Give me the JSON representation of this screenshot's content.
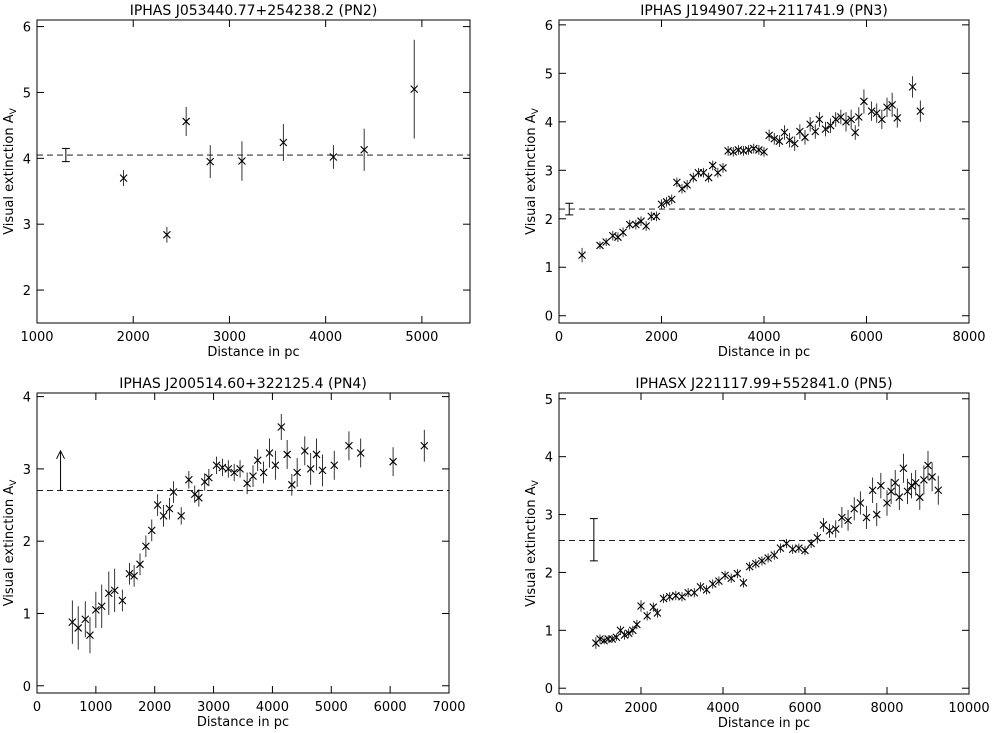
{
  "chart_data": [
    {
      "type": "scatter",
      "title": "IPHAS J053440.77+254238.2 (PN2)",
      "xlabel": "Distance in pc",
      "ylabel": "Visual extinction  A",
      "ylabel_sub": "V",
      "xlim": [
        1000,
        5500
      ],
      "ylim": [
        1.5,
        6.1
      ],
      "xticks": [
        1000,
        2000,
        3000,
        4000,
        5000
      ],
      "yticks": [
        2,
        3,
        4,
        5,
        6
      ],
      "grid": false,
      "reference_line": 4.05,
      "pn_marker": {
        "kind": "errorbar",
        "x": 1300,
        "y": 4.05,
        "low": 3.95,
        "high": 4.15
      },
      "points": [
        {
          "x": 1900,
          "y": 3.7,
          "err": 0.12
        },
        {
          "x": 2350,
          "y": 2.84,
          "err": 0.12
        },
        {
          "x": 2550,
          "y": 4.56,
          "err": 0.22
        },
        {
          "x": 2800,
          "y": 3.95,
          "err": 0.25
        },
        {
          "x": 3130,
          "y": 3.96,
          "err": 0.3
        },
        {
          "x": 3560,
          "y": 4.24,
          "err": 0.28
        },
        {
          "x": 4080,
          "y": 4.02,
          "err": 0.18
        },
        {
          "x": 4400,
          "y": 4.13,
          "err": 0.32
        },
        {
          "x": 4920,
          "y": 5.05,
          "err": 0.75
        }
      ]
    },
    {
      "type": "scatter",
      "title": "IPHAS J194907.22+211741.9 (PN3)",
      "xlabel": "Distance in pc",
      "ylabel": "Visual extinction  A",
      "ylabel_sub": "V",
      "xlim": [
        0,
        8000
      ],
      "ylim": [
        -0.15,
        6.1
      ],
      "xticks": [
        0,
        2000,
        4000,
        6000,
        8000
      ],
      "yticks": [
        0,
        1,
        2,
        3,
        4,
        5,
        6
      ],
      "grid": false,
      "reference_line": 2.2,
      "pn_marker": {
        "kind": "errorbar",
        "x": 200,
        "y": 2.2,
        "low": 2.08,
        "high": 2.32
      },
      "points": [
        {
          "x": 450,
          "y": 1.25,
          "err": 0.15
        },
        {
          "x": 800,
          "y": 1.45,
          "err": 0.08
        },
        {
          "x": 920,
          "y": 1.52,
          "err": 0.08
        },
        {
          "x": 1050,
          "y": 1.65,
          "err": 0.1
        },
        {
          "x": 1150,
          "y": 1.62,
          "err": 0.1
        },
        {
          "x": 1250,
          "y": 1.72,
          "err": 0.1
        },
        {
          "x": 1380,
          "y": 1.88,
          "err": 0.1
        },
        {
          "x": 1500,
          "y": 1.88,
          "err": 0.1
        },
        {
          "x": 1600,
          "y": 1.95,
          "err": 0.1
        },
        {
          "x": 1700,
          "y": 1.85,
          "err": 0.1
        },
        {
          "x": 1800,
          "y": 2.05,
          "err": 0.1
        },
        {
          "x": 1900,
          "y": 2.05,
          "err": 0.1
        },
        {
          "x": 2000,
          "y": 2.3,
          "err": 0.1
        },
        {
          "x": 2100,
          "y": 2.35,
          "err": 0.1
        },
        {
          "x": 2200,
          "y": 2.4,
          "err": 0.1
        },
        {
          "x": 2300,
          "y": 2.75,
          "err": 0.1
        },
        {
          "x": 2400,
          "y": 2.62,
          "err": 0.1
        },
        {
          "x": 2500,
          "y": 2.7,
          "err": 0.1
        },
        {
          "x": 2620,
          "y": 2.85,
          "err": 0.1
        },
        {
          "x": 2720,
          "y": 2.95,
          "err": 0.1
        },
        {
          "x": 2820,
          "y": 2.95,
          "err": 0.1
        },
        {
          "x": 2920,
          "y": 2.85,
          "err": 0.1
        },
        {
          "x": 3000,
          "y": 3.1,
          "err": 0.1
        },
        {
          "x": 3100,
          "y": 2.95,
          "err": 0.1
        },
        {
          "x": 3200,
          "y": 3.05,
          "err": 0.1
        },
        {
          "x": 3300,
          "y": 3.4,
          "err": 0.1
        },
        {
          "x": 3400,
          "y": 3.38,
          "err": 0.1
        },
        {
          "x": 3500,
          "y": 3.42,
          "err": 0.1
        },
        {
          "x": 3600,
          "y": 3.4,
          "err": 0.1
        },
        {
          "x": 3700,
          "y": 3.42,
          "err": 0.1
        },
        {
          "x": 3800,
          "y": 3.45,
          "err": 0.1
        },
        {
          "x": 3900,
          "y": 3.42,
          "err": 0.1
        },
        {
          "x": 4000,
          "y": 3.38,
          "err": 0.1
        },
        {
          "x": 4100,
          "y": 3.72,
          "err": 0.12
        },
        {
          "x": 4200,
          "y": 3.65,
          "err": 0.12
        },
        {
          "x": 4300,
          "y": 3.6,
          "err": 0.12
        },
        {
          "x": 4400,
          "y": 3.78,
          "err": 0.15
        },
        {
          "x": 4500,
          "y": 3.62,
          "err": 0.15
        },
        {
          "x": 4600,
          "y": 3.55,
          "err": 0.15
        },
        {
          "x": 4700,
          "y": 3.8,
          "err": 0.15
        },
        {
          "x": 4800,
          "y": 3.68,
          "err": 0.15
        },
        {
          "x": 4900,
          "y": 3.95,
          "err": 0.15
        },
        {
          "x": 5000,
          "y": 3.8,
          "err": 0.15
        },
        {
          "x": 5080,
          "y": 4.05,
          "err": 0.15
        },
        {
          "x": 5200,
          "y": 3.85,
          "err": 0.15
        },
        {
          "x": 5300,
          "y": 3.92,
          "err": 0.15
        },
        {
          "x": 5400,
          "y": 4.05,
          "err": 0.15
        },
        {
          "x": 5500,
          "y": 4.1,
          "err": 0.15
        },
        {
          "x": 5600,
          "y": 4.0,
          "err": 0.2
        },
        {
          "x": 5700,
          "y": 4.05,
          "err": 0.2
        },
        {
          "x": 5780,
          "y": 3.78,
          "err": 0.15
        },
        {
          "x": 5850,
          "y": 4.1,
          "err": 0.2
        },
        {
          "x": 5950,
          "y": 4.42,
          "err": 0.25
        },
        {
          "x": 6100,
          "y": 4.22,
          "err": 0.2
        },
        {
          "x": 6200,
          "y": 4.18,
          "err": 0.2
        },
        {
          "x": 6300,
          "y": 4.05,
          "err": 0.2
        },
        {
          "x": 6400,
          "y": 4.3,
          "err": 0.2
        },
        {
          "x": 6500,
          "y": 4.35,
          "err": 0.25
        },
        {
          "x": 6600,
          "y": 4.08,
          "err": 0.2
        },
        {
          "x": 6900,
          "y": 4.72,
          "err": 0.22
        },
        {
          "x": 7050,
          "y": 4.22,
          "err": 0.22
        }
      ]
    },
    {
      "type": "scatter",
      "title": "IPHAS J200514.60+322125.4 (PN4)",
      "xlabel": "Distance in pc",
      "ylabel": "Visual extinction  A",
      "ylabel_sub": "V",
      "xlim": [
        0,
        7000
      ],
      "ylim": [
        -0.1,
        4.05
      ],
      "xticks": [
        0,
        1000,
        2000,
        3000,
        4000,
        5000,
        6000,
        7000
      ],
      "yticks": [
        0,
        1,
        2,
        3,
        4
      ],
      "grid": false,
      "reference_line": 2.7,
      "pn_marker": {
        "kind": "lower_limit_arrow",
        "x": 400,
        "y": 2.7,
        "to": 3.25
      },
      "points": [
        {
          "x": 600,
          "y": 0.88,
          "err": 0.3
        },
        {
          "x": 700,
          "y": 0.8,
          "err": 0.3
        },
        {
          "x": 820,
          "y": 0.92,
          "err": 0.25
        },
        {
          "x": 900,
          "y": 0.7,
          "err": 0.25
        },
        {
          "x": 1000,
          "y": 1.05,
          "err": 0.25
        },
        {
          "x": 1100,
          "y": 1.1,
          "err": 0.3
        },
        {
          "x": 1220,
          "y": 1.28,
          "err": 0.3
        },
        {
          "x": 1320,
          "y": 1.32,
          "err": 0.3
        },
        {
          "x": 1450,
          "y": 1.18,
          "err": 0.15
        },
        {
          "x": 1570,
          "y": 1.55,
          "err": 0.15
        },
        {
          "x": 1650,
          "y": 1.52,
          "err": 0.15
        },
        {
          "x": 1750,
          "y": 1.68,
          "err": 0.15
        },
        {
          "x": 1850,
          "y": 1.93,
          "err": 0.15
        },
        {
          "x": 1950,
          "y": 2.15,
          "err": 0.15
        },
        {
          "x": 2050,
          "y": 2.5,
          "err": 0.15
        },
        {
          "x": 2150,
          "y": 2.35,
          "err": 0.15
        },
        {
          "x": 2250,
          "y": 2.45,
          "err": 0.15
        },
        {
          "x": 2320,
          "y": 2.68,
          "err": 0.15
        },
        {
          "x": 2450,
          "y": 2.35,
          "err": 0.12
        },
        {
          "x": 2580,
          "y": 2.85,
          "err": 0.12
        },
        {
          "x": 2680,
          "y": 2.65,
          "err": 0.12
        },
        {
          "x": 2750,
          "y": 2.6,
          "err": 0.12
        },
        {
          "x": 2850,
          "y": 2.82,
          "err": 0.12
        },
        {
          "x": 2920,
          "y": 2.88,
          "err": 0.12
        },
        {
          "x": 3050,
          "y": 3.05,
          "err": 0.12
        },
        {
          "x": 3150,
          "y": 3.02,
          "err": 0.12
        },
        {
          "x": 3250,
          "y": 3.0,
          "err": 0.12
        },
        {
          "x": 3350,
          "y": 2.95,
          "err": 0.12
        },
        {
          "x": 3450,
          "y": 3.0,
          "err": 0.12
        },
        {
          "x": 3570,
          "y": 2.8,
          "err": 0.15
        },
        {
          "x": 3670,
          "y": 2.9,
          "err": 0.15
        },
        {
          "x": 3750,
          "y": 3.12,
          "err": 0.15
        },
        {
          "x": 3850,
          "y": 2.95,
          "err": 0.15
        },
        {
          "x": 3950,
          "y": 3.22,
          "err": 0.2
        },
        {
          "x": 4050,
          "y": 3.05,
          "err": 0.2
        },
        {
          "x": 4150,
          "y": 3.58,
          "err": 0.18
        },
        {
          "x": 4250,
          "y": 3.2,
          "err": 0.2
        },
        {
          "x": 4330,
          "y": 2.78,
          "err": 0.15
        },
        {
          "x": 4420,
          "y": 2.95,
          "err": 0.2
        },
        {
          "x": 4550,
          "y": 3.25,
          "err": 0.2
        },
        {
          "x": 4650,
          "y": 3.0,
          "err": 0.22
        },
        {
          "x": 4750,
          "y": 3.2,
          "err": 0.22
        },
        {
          "x": 4850,
          "y": 2.98,
          "err": 0.22
        },
        {
          "x": 5050,
          "y": 3.05,
          "err": 0.2
        },
        {
          "x": 5300,
          "y": 3.32,
          "err": 0.2
        },
        {
          "x": 5500,
          "y": 3.22,
          "err": 0.2
        },
        {
          "x": 6050,
          "y": 3.1,
          "err": 0.2
        },
        {
          "x": 6580,
          "y": 3.32,
          "err": 0.22
        }
      ]
    },
    {
      "type": "scatter",
      "title": "IPHASX J221117.99+552841.0 (PN5)",
      "xlabel": "Distance in pc",
      "ylabel": "Visual extinction  A",
      "ylabel_sub": "V",
      "xlim": [
        0,
        10000
      ],
      "ylim": [
        -0.1,
        5.1
      ],
      "xticks": [
        0,
        2000,
        4000,
        6000,
        8000,
        10000
      ],
      "yticks": [
        0,
        1,
        2,
        3,
        4,
        5
      ],
      "grid": false,
      "reference_line": 2.55,
      "pn_marker": {
        "kind": "errorbar",
        "x": 850,
        "y": 2.55,
        "low": 2.2,
        "high": 2.93
      },
      "points": [
        {
          "x": 900,
          "y": 0.78,
          "err": 0.1
        },
        {
          "x": 1000,
          "y": 0.85,
          "err": 0.08
        },
        {
          "x": 1100,
          "y": 0.82,
          "err": 0.06
        },
        {
          "x": 1200,
          "y": 0.85,
          "err": 0.06
        },
        {
          "x": 1300,
          "y": 0.85,
          "err": 0.06
        },
        {
          "x": 1400,
          "y": 0.88,
          "err": 0.06
        },
        {
          "x": 1500,
          "y": 1.0,
          "err": 0.08
        },
        {
          "x": 1600,
          "y": 0.92,
          "err": 0.08
        },
        {
          "x": 1700,
          "y": 0.95,
          "err": 0.08
        },
        {
          "x": 1800,
          "y": 1.0,
          "err": 0.08
        },
        {
          "x": 1900,
          "y": 1.1,
          "err": 0.08
        },
        {
          "x": 2000,
          "y": 1.42,
          "err": 0.1
        },
        {
          "x": 2150,
          "y": 1.25,
          "err": 0.08
        },
        {
          "x": 2300,
          "y": 1.4,
          "err": 0.08
        },
        {
          "x": 2400,
          "y": 1.3,
          "err": 0.08
        },
        {
          "x": 2550,
          "y": 1.55,
          "err": 0.08
        },
        {
          "x": 2700,
          "y": 1.58,
          "err": 0.08
        },
        {
          "x": 2850,
          "y": 1.6,
          "err": 0.08
        },
        {
          "x": 3000,
          "y": 1.58,
          "err": 0.08
        },
        {
          "x": 3150,
          "y": 1.65,
          "err": 0.08
        },
        {
          "x": 3300,
          "y": 1.65,
          "err": 0.08
        },
        {
          "x": 3450,
          "y": 1.75,
          "err": 0.08
        },
        {
          "x": 3600,
          "y": 1.7,
          "err": 0.08
        },
        {
          "x": 3750,
          "y": 1.8,
          "err": 0.08
        },
        {
          "x": 3900,
          "y": 1.85,
          "err": 0.08
        },
        {
          "x": 4050,
          "y": 1.95,
          "err": 0.08
        },
        {
          "x": 4200,
          "y": 1.9,
          "err": 0.08
        },
        {
          "x": 4350,
          "y": 1.98,
          "err": 0.08
        },
        {
          "x": 4500,
          "y": 1.82,
          "err": 0.08
        },
        {
          "x": 4650,
          "y": 2.1,
          "err": 0.08
        },
        {
          "x": 4800,
          "y": 2.15,
          "err": 0.08
        },
        {
          "x": 4950,
          "y": 2.2,
          "err": 0.08
        },
        {
          "x": 5100,
          "y": 2.25,
          "err": 0.08
        },
        {
          "x": 5250,
          "y": 2.3,
          "err": 0.08
        },
        {
          "x": 5400,
          "y": 2.42,
          "err": 0.08
        },
        {
          "x": 5550,
          "y": 2.5,
          "err": 0.08
        },
        {
          "x": 5700,
          "y": 2.4,
          "err": 0.08
        },
        {
          "x": 5850,
          "y": 2.42,
          "err": 0.08
        },
        {
          "x": 6000,
          "y": 2.38,
          "err": 0.08
        },
        {
          "x": 6150,
          "y": 2.5,
          "err": 0.08
        },
        {
          "x": 6300,
          "y": 2.6,
          "err": 0.1
        },
        {
          "x": 6450,
          "y": 2.82,
          "err": 0.12
        },
        {
          "x": 6600,
          "y": 2.72,
          "err": 0.12
        },
        {
          "x": 6750,
          "y": 2.75,
          "err": 0.15
        },
        {
          "x": 6900,
          "y": 2.95,
          "err": 0.18
        },
        {
          "x": 7050,
          "y": 2.9,
          "err": 0.18
        },
        {
          "x": 7200,
          "y": 3.1,
          "err": 0.2
        },
        {
          "x": 7350,
          "y": 3.2,
          "err": 0.2
        },
        {
          "x": 7500,
          "y": 2.95,
          "err": 0.2
        },
        {
          "x": 7650,
          "y": 3.42,
          "err": 0.22
        },
        {
          "x": 7750,
          "y": 3.0,
          "err": 0.2
        },
        {
          "x": 7850,
          "y": 3.5,
          "err": 0.22
        },
        {
          "x": 8000,
          "y": 3.2,
          "err": 0.22
        },
        {
          "x": 8100,
          "y": 3.4,
          "err": 0.22
        },
        {
          "x": 8200,
          "y": 3.55,
          "err": 0.22
        },
        {
          "x": 8300,
          "y": 3.3,
          "err": 0.22
        },
        {
          "x": 8400,
          "y": 3.8,
          "err": 0.25
        },
        {
          "x": 8500,
          "y": 3.4,
          "err": 0.22
        },
        {
          "x": 8600,
          "y": 3.5,
          "err": 0.22
        },
        {
          "x": 8700,
          "y": 3.55,
          "err": 0.22
        },
        {
          "x": 8800,
          "y": 3.3,
          "err": 0.22
        },
        {
          "x": 8900,
          "y": 3.6,
          "err": 0.25
        },
        {
          "x": 9000,
          "y": 3.85,
          "err": 0.25
        },
        {
          "x": 9100,
          "y": 3.65,
          "err": 0.25
        },
        {
          "x": 9250,
          "y": 3.42,
          "err": 0.25
        }
      ]
    }
  ]
}
